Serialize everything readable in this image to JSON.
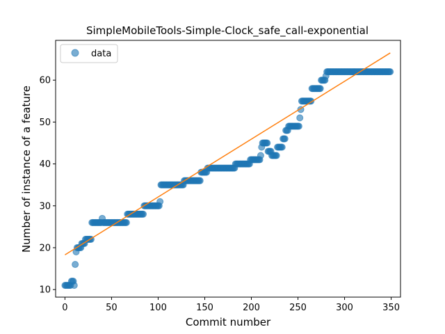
{
  "chart_data": {
    "type": "scatter",
    "title": "SimpleMobileTools-Simple-Clock_safe_call-exponential",
    "xlabel": "Commit number",
    "ylabel": "Number of instance of a feature",
    "xlim": [
      -10,
      360
    ],
    "ylim": [
      8.2,
      69.5
    ],
    "xticks": [
      0,
      50,
      100,
      150,
      200,
      250,
      300,
      350
    ],
    "yticks": [
      10,
      20,
      30,
      40,
      50,
      60
    ],
    "legend": {
      "placement": "top-left",
      "entries": [
        "data"
      ]
    },
    "grid": false,
    "colors": {
      "data": "#1f77b4",
      "fit": "#ff7f0e"
    },
    "series": [
      {
        "name": "data",
        "style": "markers",
        "segments": [
          {
            "x0": 0,
            "x1": 6,
            "y": 11
          },
          {
            "x0": 7,
            "x1": 9,
            "y": 12
          },
          {
            "x0": 10,
            "x1": 10,
            "y": 11
          },
          {
            "x0": 11,
            "x1": 11,
            "y": 16
          },
          {
            "x0": 12,
            "x1": 12,
            "y": 19
          },
          {
            "x0": 13,
            "x1": 17,
            "y": 20
          },
          {
            "x0": 18,
            "x1": 21,
            "y": 21
          },
          {
            "x0": 22,
            "x1": 28,
            "y": 22
          },
          {
            "x0": 29,
            "x1": 39,
            "y": 26
          },
          {
            "x0": 40,
            "x1": 40,
            "y": 27
          },
          {
            "x0": 41,
            "x1": 66,
            "y": 26
          },
          {
            "x0": 67,
            "x1": 84,
            "y": 28
          },
          {
            "x0": 85,
            "x1": 101,
            "y": 30
          },
          {
            "x0": 102,
            "x1": 102,
            "y": 31
          },
          {
            "x0": 103,
            "x1": 127,
            "y": 35
          },
          {
            "x0": 128,
            "x1": 145,
            "y": 36
          },
          {
            "x0": 146,
            "x1": 152,
            "y": 38
          },
          {
            "x0": 153,
            "x1": 182,
            "y": 39
          },
          {
            "x0": 183,
            "x1": 198,
            "y": 40
          },
          {
            "x0": 199,
            "x1": 209,
            "y": 41
          },
          {
            "x0": 210,
            "x1": 210,
            "y": 42
          },
          {
            "x0": 211,
            "x1": 211,
            "y": 44
          },
          {
            "x0": 212,
            "x1": 217,
            "y": 45
          },
          {
            "x0": 218,
            "x1": 221,
            "y": 43
          },
          {
            "x0": 222,
            "x1": 227,
            "y": 42
          },
          {
            "x0": 228,
            "x1": 233,
            "y": 44
          },
          {
            "x0": 234,
            "x1": 236,
            "y": 46
          },
          {
            "x0": 237,
            "x1": 239,
            "y": 48
          },
          {
            "x0": 240,
            "x1": 251,
            "y": 49
          },
          {
            "x0": 252,
            "x1": 252,
            "y": 51
          },
          {
            "x0": 253,
            "x1": 253,
            "y": 53
          },
          {
            "x0": 254,
            "x1": 264,
            "y": 55
          },
          {
            "x0": 265,
            "x1": 274,
            "y": 58
          },
          {
            "x0": 275,
            "x1": 279,
            "y": 60
          },
          {
            "x0": 280,
            "x1": 280,
            "y": 61
          },
          {
            "x0": 281,
            "x1": 349,
            "y": 62
          }
        ]
      },
      {
        "style": "line",
        "x": [
          0,
          349
        ],
        "y": [
          18.3,
          66.5
        ]
      }
    ]
  }
}
